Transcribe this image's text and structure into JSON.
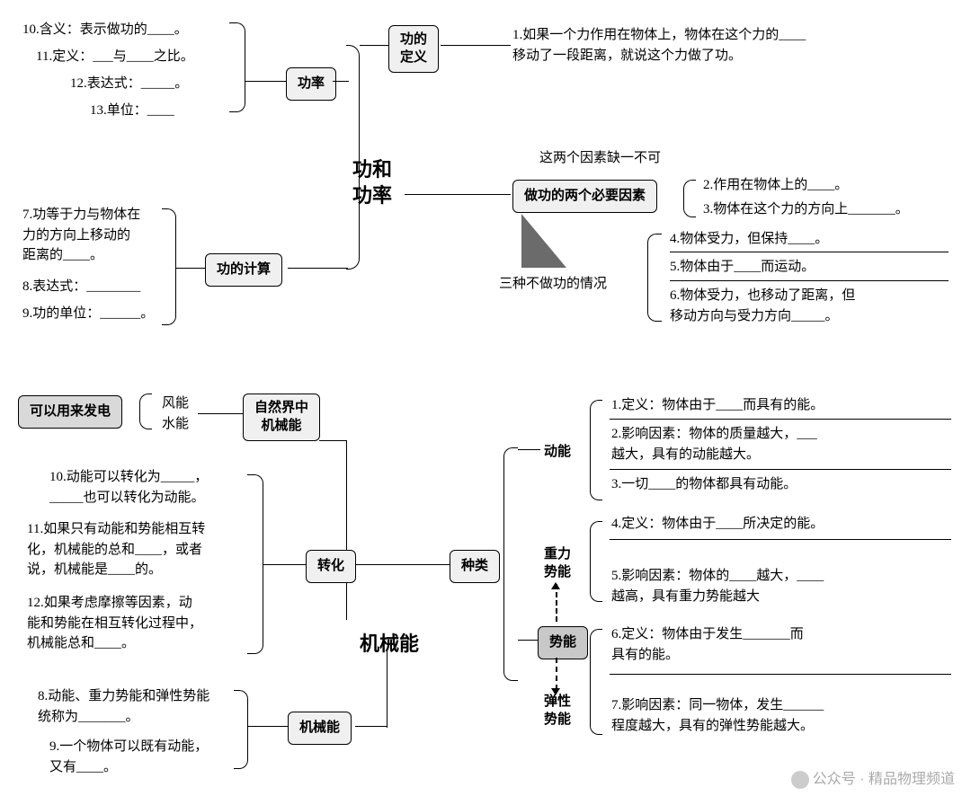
{
  "top": {
    "center_title": "功和\n功率",
    "def_box": "功的\n定义",
    "def_text": "1.如果一个力作用在物体上，物体在这个力的____\n移动了一段距离，就说这个力做了功。",
    "power_box": "功率",
    "power_items": [
      "10.含义：表示做功的____。",
      "11.定义：___与____之比。",
      "12.表达式：_____。",
      "13.单位：____"
    ],
    "factors_caption": "这两个因素缺一不可",
    "factors_box": "做功的两个必要因素",
    "factors_right": [
      "2.作用在物体上的____。",
      "3.物体在这个力的方向上_______。"
    ],
    "nowork_caption": "三种不做功的情况",
    "nowork_items": [
      "4.物体受力，但保持____。",
      "5.物体由于____而运动。",
      "6.物体受力，也移动了距离，但\n移动方向与受力方向_____。"
    ],
    "calc_box": "功的计算",
    "calc_items": [
      "7.功等于力与物体在\n力的方向上移动的\n距离的____。",
      "8.表达式：________",
      "9.功的单位：______。"
    ]
  },
  "bot": {
    "center_title": "机械能",
    "elec_box": "可以用来发电",
    "wind": "风能\n水能",
    "nature_box": "自然界中\n机械能",
    "types_box": "种类",
    "kinetic": "动能",
    "gravity": "重力\n势能",
    "potential_box": "势能",
    "elastic": "弹性\n势能",
    "kinetic_items": [
      "1.定义：物体由于____而具有的能。",
      "2.影响因素：物体的质量越大，___\n越大，具有的动能越大。",
      "3.一切____的物体都具有动能。"
    ],
    "gravity_items": [
      "4.定义：物体由于____所决定的能。",
      "5.影响因素：物体的____越大，____\n越高，具有重力势能越大"
    ],
    "elastic_items": [
      "6.定义：物体由于发生_______而\n具有的能。",
      "7.影响因素：同一物体，发生______\n程度越大，具有的弹性势能越大。"
    ],
    "trans_box": "转化",
    "trans_items": [
      "10.动能可以转化为_____，\n_____也可以转化为动能。",
      "11.如果只有动能和势能相互转\n化，机械能的总和____，或者\n说，机械能是____的。",
      "12.如果考虑摩擦等因素，动\n能和势能在相互转化过程中，\n机械能总和____。"
    ],
    "mech_box": "机械能",
    "mech_items": [
      "8.动能、重力势能和弹性势能\n统称为_______。",
      "9.一个物体可以既有动能，\n又有____。"
    ]
  },
  "watermark": "公众号 · 精品物理频道"
}
